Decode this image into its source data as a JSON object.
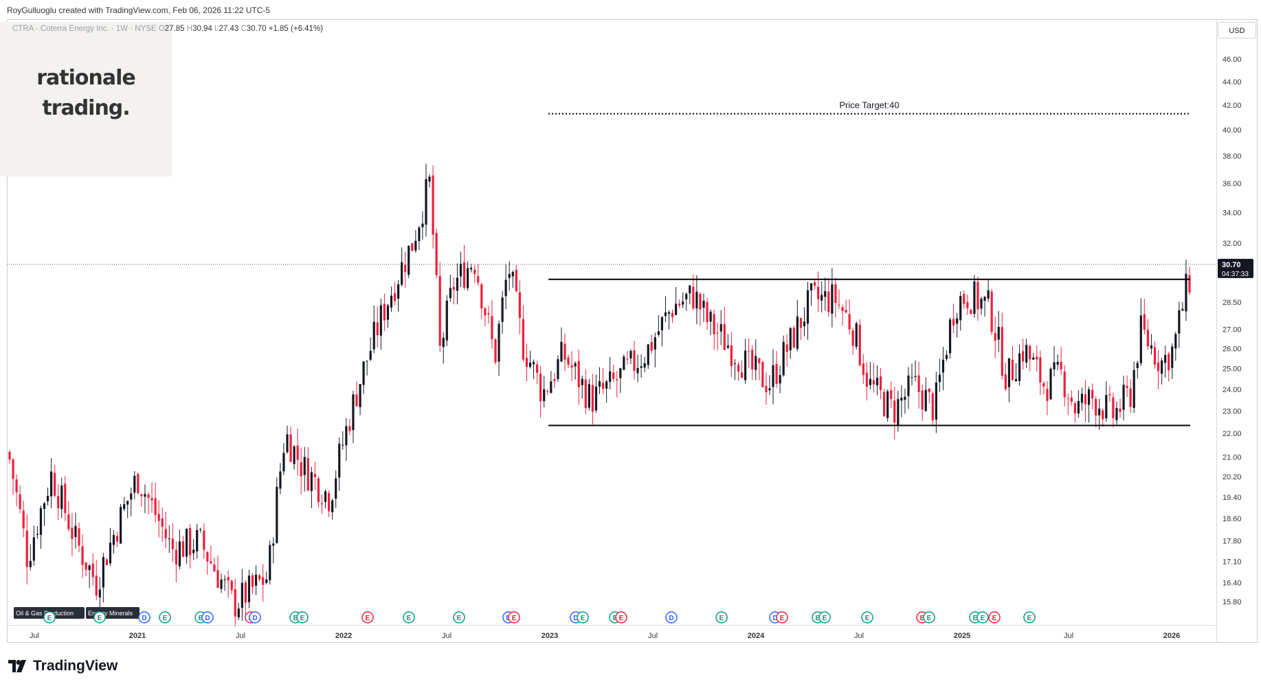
{
  "header": {
    "created_by": "RoyGulluoglu created with TradingView.com, Feb 06, 2026 11:22 UTC-5"
  },
  "symbol": {
    "name": "CTRA · Coterra Energy Inc. · 1W · NYSE",
    "open_label": "O",
    "open": "27.85",
    "high_label": "H",
    "high": "30.94",
    "low_label": "L",
    "low": "27.43",
    "close_label": "C",
    "close": "30.70",
    "change": "+1.85 (+6.41%)"
  },
  "watermark": {
    "line1": "rationale",
    "line2": "trading."
  },
  "annotation": {
    "price_target": "Price Target:40"
  },
  "price_axis": {
    "currency": "USD",
    "ticks": [
      "46.00",
      "44.00",
      "42.00",
      "40.00",
      "38.00",
      "36.00",
      "34.00",
      "32.00",
      "28.50",
      "27.00",
      "26.00",
      "25.00",
      "24.00",
      "23.00",
      "22.00",
      "21.00",
      "20.20",
      "19.40",
      "18.60",
      "17.80",
      "17.10",
      "16.40",
      "15.80"
    ],
    "last_price": "30.70",
    "countdown": "04:37:33"
  },
  "time_axis": {
    "labels": [
      "Jul",
      "2021",
      "Jul",
      "2022",
      "Jul",
      "2023",
      "Jul",
      "2024",
      "Jul",
      "2025",
      "Jul",
      "2026"
    ]
  },
  "sector_tags": [
    "Oil & Gas Production",
    "Energy Minerals"
  ],
  "event_markers": [
    "E",
    "E",
    "D",
    "E",
    "E",
    "D",
    "E",
    "D",
    "E",
    "E",
    "E",
    "E",
    "E",
    "D",
    "E",
    "D",
    "E",
    "E",
    "E",
    "D",
    "E",
    "D",
    "E",
    "E",
    "E",
    "E",
    "E",
    "E",
    "E",
    "E",
    "E",
    "E"
  ],
  "chart_data": {
    "type": "candlestick",
    "symbol": "CTRA",
    "interval": "1W",
    "y_scale": "log",
    "ylim": [
      15.5,
      47
    ],
    "price_target": 40,
    "last_close": 30.7,
    "range_top": 29.8,
    "range_bottom": 22.35,
    "target_level": 41.3,
    "colors": {
      "up": "#131722",
      "down": "#ef1e3a",
      "line": "#000000"
    }
  },
  "footer": {
    "brand": "TradingView"
  }
}
